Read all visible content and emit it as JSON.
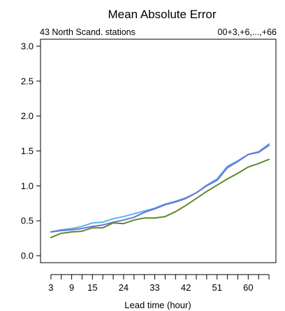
{
  "chart_data": {
    "type": "line",
    "title": "Mean Absolute Error",
    "subtitle_left": "43 North Scand. stations",
    "subtitle_right": "00+3,+6,...,+66",
    "xlabel": "Lead time (hour)",
    "ylabel": "",
    "xlim": [
      0,
      68
    ],
    "ylim": [
      -0.1,
      3.1
    ],
    "x_ticks": [
      3,
      9,
      15,
      24,
      33,
      42,
      51,
      60
    ],
    "x_minor_ticks": [
      3,
      6,
      9,
      12,
      15,
      18,
      21,
      24,
      27,
      30,
      33,
      36,
      39,
      42,
      45,
      48,
      51,
      54,
      57,
      60,
      63,
      66
    ],
    "y_ticks": [
      "0.0",
      "0.5",
      "1.0",
      "1.5",
      "2.0",
      "2.5",
      "3.0"
    ],
    "y_tick_values": [
      0.0,
      0.5,
      1.0,
      1.5,
      2.0,
      2.5,
      3.0
    ],
    "grid": false,
    "x": [
      3,
      6,
      9,
      12,
      15,
      18,
      21,
      24,
      27,
      30,
      33,
      36,
      39,
      42,
      45,
      48,
      51,
      54,
      57,
      60,
      63,
      66
    ],
    "series": [
      {
        "color": "#5ab4e8",
        "values": [
          0.34,
          0.37,
          0.39,
          0.42,
          0.47,
          0.48,
          0.53,
          0.56,
          0.6,
          0.64,
          0.68,
          0.74,
          0.78,
          0.83,
          0.9,
          1.01,
          1.1,
          1.28,
          1.36,
          1.45,
          1.49,
          1.6
        ]
      },
      {
        "color": "#6d72d9",
        "values": [
          0.34,
          0.36,
          0.37,
          0.39,
          0.42,
          0.44,
          0.48,
          0.51,
          0.55,
          0.62,
          0.67,
          0.73,
          0.77,
          0.82,
          0.9,
          1.0,
          1.08,
          1.26,
          1.35,
          1.45,
          1.48,
          1.58
        ]
      },
      {
        "color": "#5e8a2a",
        "values": [
          0.26,
          0.32,
          0.34,
          0.35,
          0.4,
          0.4,
          0.47,
          0.46,
          0.51,
          0.54,
          0.54,
          0.56,
          0.63,
          0.72,
          0.82,
          0.92,
          1.01,
          1.1,
          1.18,
          1.27,
          1.32,
          1.38
        ]
      }
    ]
  }
}
